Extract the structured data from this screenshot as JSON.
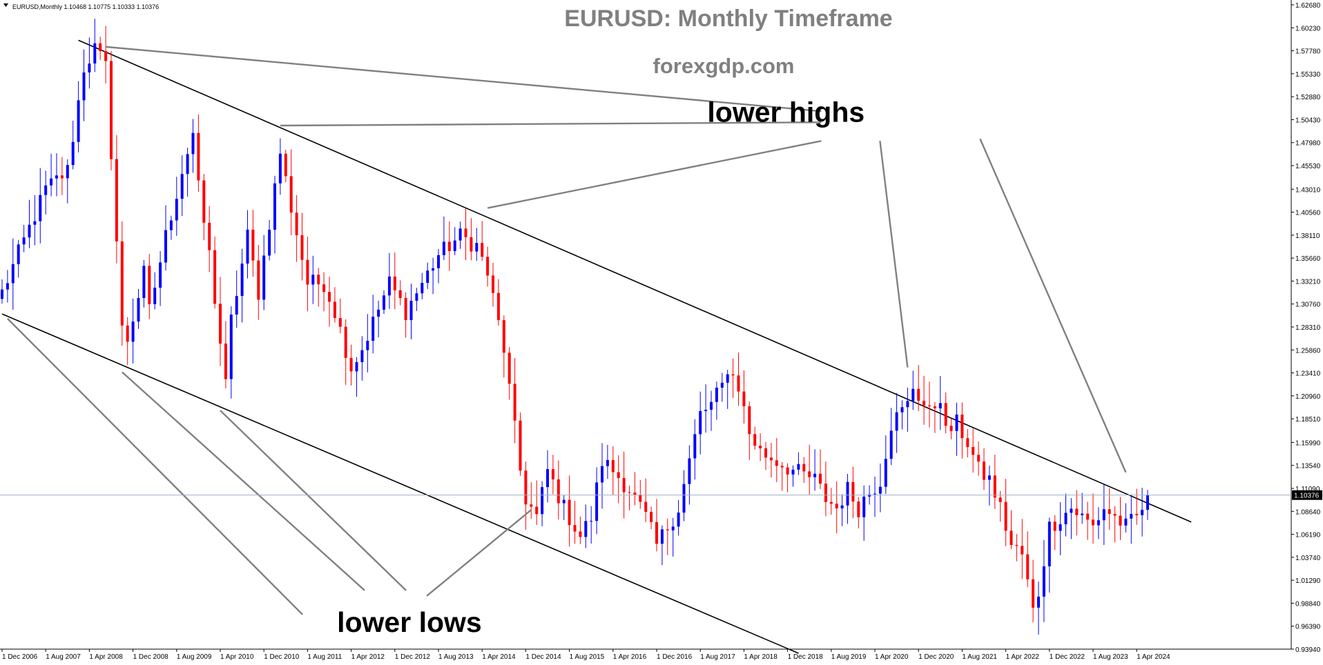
{
  "chart_data": {
    "type": "candlestick",
    "symbol_info": "EURUSD,Monthly  1.10468 1.10775 1.10333 1.10376",
    "title": "EURUSD: Monthly Timeframe",
    "subtitle": "forexgdp.com",
    "ylim": [
      0.9394,
      1.6268
    ],
    "current_price": 1.10376,
    "current_price_label": "1.10376",
    "grid": false,
    "colors": {
      "bull": "#0000ff",
      "bear": "#ff0000",
      "background": "#ffffff",
      "trendline": "#000000",
      "arrow": "#808080",
      "price_line": "#a0b0c0"
    },
    "y_ticks": [
      {
        "value": 1.6268,
        "label": "1.62680"
      },
      {
        "value": 1.6023,
        "label": "1.60230"
      },
      {
        "value": 1.5778,
        "label": "1.57780"
      },
      {
        "value": 1.5533,
        "label": "1.55330"
      },
      {
        "value": 1.5288,
        "label": "1.52880"
      },
      {
        "value": 1.5043,
        "label": "1.50430"
      },
      {
        "value": 1.4798,
        "label": "1.47980"
      },
      {
        "value": 1.4553,
        "label": "1.45530"
      },
      {
        "value": 1.4301,
        "label": "1.43010"
      },
      {
        "value": 1.4056,
        "label": "1.40560"
      },
      {
        "value": 1.3811,
        "label": "1.38110"
      },
      {
        "value": 1.3566,
        "label": "1.35660"
      },
      {
        "value": 1.3321,
        "label": "1.33210"
      },
      {
        "value": 1.3076,
        "label": "1.30760"
      },
      {
        "value": 1.2831,
        "label": "1.28310"
      },
      {
        "value": 1.2586,
        "label": "1.25860"
      },
      {
        "value": 1.2341,
        "label": "1.23410"
      },
      {
        "value": 1.2096,
        "label": "1.20960"
      },
      {
        "value": 1.1851,
        "label": "1.18510"
      },
      {
        "value": 1.1599,
        "label": "1.15990"
      },
      {
        "value": 1.1354,
        "label": "1.13540"
      },
      {
        "value": 1.1109,
        "label": "1.11090"
      },
      {
        "value": 1.0864,
        "label": "1.08640"
      },
      {
        "value": 1.0619,
        "label": "1.06190"
      },
      {
        "value": 1.0374,
        "label": "1.03740"
      },
      {
        "value": 1.0129,
        "label": "1.01290"
      },
      {
        "value": 0.9884,
        "label": "0.98840"
      },
      {
        "value": 0.9639,
        "label": "0.96390"
      },
      {
        "value": 0.9394,
        "label": "0.93940"
      }
    ],
    "x_labels": [
      {
        "index": 0,
        "label": "1 Dec 2006"
      },
      {
        "index": 8,
        "label": "1 Aug 2007"
      },
      {
        "index": 16,
        "label": "1 Apr 2008"
      },
      {
        "index": 24,
        "label": "1 Dec 2008"
      },
      {
        "index": 32,
        "label": "1 Aug 2009"
      },
      {
        "index": 40,
        "label": "1 Apr 2010"
      },
      {
        "index": 48,
        "label": "1 Dec 2010"
      },
      {
        "index": 56,
        "label": "1 Aug 2011"
      },
      {
        "index": 64,
        "label": "1 Apr 2012"
      },
      {
        "index": 72,
        "label": "1 Dec 2012"
      },
      {
        "index": 80,
        "label": "1 Aug 2013"
      },
      {
        "index": 88,
        "label": "1 Apr 2014"
      },
      {
        "index": 96,
        "label": "1 Dec 2014"
      },
      {
        "index": 104,
        "label": "1 Aug 2015"
      },
      {
        "index": 112,
        "label": "1 Apr 2016"
      },
      {
        "index": 120,
        "label": "1 Dec 2016"
      },
      {
        "index": 128,
        "label": "1 Aug 2017"
      },
      {
        "index": 136,
        "label": "1 Apr 2018"
      },
      {
        "index": 144,
        "label": "1 Dec 2018"
      },
      {
        "index": 152,
        "label": "1 Aug 2019"
      },
      {
        "index": 160,
        "label": "1 Apr 2020"
      },
      {
        "index": 168,
        "label": "1 Dec 2020"
      },
      {
        "index": 176,
        "label": "1 Aug 2021"
      },
      {
        "index": 184,
        "label": "1 Apr 2022"
      },
      {
        "index": 192,
        "label": "1 Dec 2022"
      },
      {
        "index": 200,
        "label": "1 Aug 2023"
      },
      {
        "index": 208,
        "label": "1 Apr 2024"
      }
    ],
    "anchors": [
      [
        0,
        1.32
      ],
      [
        8,
        1.43
      ],
      [
        12,
        1.45
      ],
      [
        15,
        1.56
      ],
      [
        17,
        1.58
      ],
      [
        19,
        1.56
      ],
      [
        20,
        1.47
      ],
      [
        22,
        1.28
      ],
      [
        23,
        1.27
      ],
      [
        26,
        1.34
      ],
      [
        27,
        1.3
      ],
      [
        30,
        1.38
      ],
      [
        33,
        1.45
      ],
      [
        35,
        1.49
      ],
      [
        36,
        1.43
      ],
      [
        38,
        1.36
      ],
      [
        41,
        1.22
      ],
      [
        42,
        1.29
      ],
      [
        45,
        1.38
      ],
      [
        47,
        1.32
      ],
      [
        51,
        1.47
      ],
      [
        53,
        1.41
      ],
      [
        56,
        1.33
      ],
      [
        59,
        1.33
      ],
      [
        61,
        1.3
      ],
      [
        64,
        1.24
      ],
      [
        66,
        1.26
      ],
      [
        71,
        1.33
      ],
      [
        74,
        1.3
      ],
      [
        76,
        1.32
      ],
      [
        80,
        1.36
      ],
      [
        84,
        1.38
      ],
      [
        87,
        1.37
      ],
      [
        89,
        1.34
      ],
      [
        92,
        1.26
      ],
      [
        95,
        1.13
      ],
      [
        96,
        1.1
      ],
      [
        98,
        1.08
      ],
      [
        100,
        1.13
      ],
      [
        103,
        1.09
      ],
      [
        106,
        1.06
      ],
      [
        108,
        1.08
      ],
      [
        110,
        1.14
      ],
      [
        112,
        1.13
      ],
      [
        115,
        1.11
      ],
      [
        118,
        1.08
      ],
      [
        120,
        1.05
      ],
      [
        122,
        1.07
      ],
      [
        124,
        1.09
      ],
      [
        128,
        1.19
      ],
      [
        130,
        1.2
      ],
      [
        132,
        1.22
      ],
      [
        133,
        1.24
      ],
      [
        135,
        1.22
      ],
      [
        137,
        1.17
      ],
      [
        139,
        1.15
      ],
      [
        142,
        1.14
      ],
      [
        145,
        1.13
      ],
      [
        149,
        1.12
      ],
      [
        151,
        1.1
      ],
      [
        153,
        1.09
      ],
      [
        155,
        1.11
      ],
      [
        157,
        1.09
      ],
      [
        158,
        1.1
      ],
      [
        161,
        1.12
      ],
      [
        163,
        1.18
      ],
      [
        166,
        1.2
      ],
      [
        167,
        1.22
      ],
      [
        168,
        1.21
      ],
      [
        170,
        1.19
      ],
      [
        172,
        1.21
      ],
      [
        173,
        1.17
      ],
      [
        175,
        1.18
      ],
      [
        177,
        1.16
      ],
      [
        179,
        1.13
      ],
      [
        181,
        1.12
      ],
      [
        183,
        1.09
      ],
      [
        185,
        1.05
      ],
      [
        187,
        1.04
      ],
      [
        189,
        0.98
      ],
      [
        190,
        1.0
      ],
      [
        192,
        1.07
      ],
      [
        194,
        1.08
      ],
      [
        196,
        1.09
      ],
      [
        198,
        1.08
      ],
      [
        200,
        1.07
      ],
      [
        202,
        1.09
      ],
      [
        204,
        1.08
      ],
      [
        206,
        1.07
      ],
      [
        208,
        1.08
      ],
      [
        210,
        1.1
      ]
    ],
    "trendlines": [
      {
        "name": "upper",
        "from": {
          "index": 14,
          "value": 1.589
        },
        "to": {
          "index": 218,
          "value": 1.075
        }
      },
      {
        "name": "lower",
        "from": {
          "index": 0,
          "value": 1.297
        },
        "to": {
          "index": 146,
          "value": 0.935
        }
      }
    ],
    "annotations": [
      {
        "text": "lower highs",
        "anchor": {
          "index": 166,
          "value": 1.5
        },
        "arrow_targets": [
          {
            "index": 19,
            "value": 1.582
          },
          {
            "index": 51,
            "value": 1.498
          },
          {
            "index": 89,
            "value": 1.41
          },
          {
            "index": 166,
            "value": 1.24
          },
          {
            "index": 206,
            "value": 1.128
          }
        ]
      },
      {
        "text": "lower lows",
        "anchor": {
          "index": 69,
          "value": 0.98
        },
        "arrow_targets": [
          {
            "index": 1,
            "value": 1.292
          },
          {
            "index": 22,
            "value": 1.235
          },
          {
            "index": 40,
            "value": 1.194
          },
          {
            "index": 97,
            "value": 1.088
          }
        ]
      }
    ]
  }
}
